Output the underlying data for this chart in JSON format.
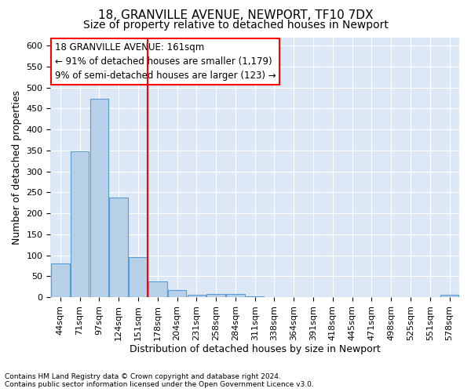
{
  "title1": "18, GRANVILLE AVENUE, NEWPORT, TF10 7DX",
  "title2": "Size of property relative to detached houses in Newport",
  "xlabel": "Distribution of detached houses by size in Newport",
  "ylabel": "Number of detached properties",
  "footer1": "Contains HM Land Registry data © Crown copyright and database right 2024.",
  "footer2": "Contains public sector information licensed under the Open Government Licence v3.0.",
  "bar_labels": [
    "44sqm",
    "71sqm",
    "97sqm",
    "124sqm",
    "151sqm",
    "178sqm",
    "204sqm",
    "231sqm",
    "258sqm",
    "284sqm",
    "311sqm",
    "338sqm",
    "364sqm",
    "391sqm",
    "418sqm",
    "445sqm",
    "471sqm",
    "498sqm",
    "525sqm",
    "551sqm",
    "578sqm"
  ],
  "bar_values": [
    80,
    348,
    474,
    237,
    95,
    37,
    17,
    6,
    8,
    7,
    2,
    1,
    1,
    1,
    0,
    0,
    0,
    0,
    0,
    0,
    5
  ],
  "bar_color": "#b8d0e8",
  "bar_edge_color": "#5b9bd5",
  "vline_x": 4.5,
  "vline_color": "red",
  "annotation_title": "18 GRANVILLE AVENUE: 161sqm",
  "annotation_line1": "← 91% of detached houses are smaller (1,179)",
  "annotation_line2": "9% of semi-detached houses are larger (123) →",
  "annotation_box_color": "white",
  "annotation_box_edge": "red",
  "ylim": [
    0,
    620
  ],
  "yticks": [
    0,
    50,
    100,
    150,
    200,
    250,
    300,
    350,
    400,
    450,
    500,
    550,
    600
  ],
  "plot_background": "#dce8f5",
  "grid_color": "white",
  "title1_fontsize": 11,
  "title2_fontsize": 10,
  "xlabel_fontsize": 9,
  "ylabel_fontsize": 9,
  "tick_fontsize": 8,
  "annotation_fontsize": 8.5,
  "footer_fontsize": 6.5
}
